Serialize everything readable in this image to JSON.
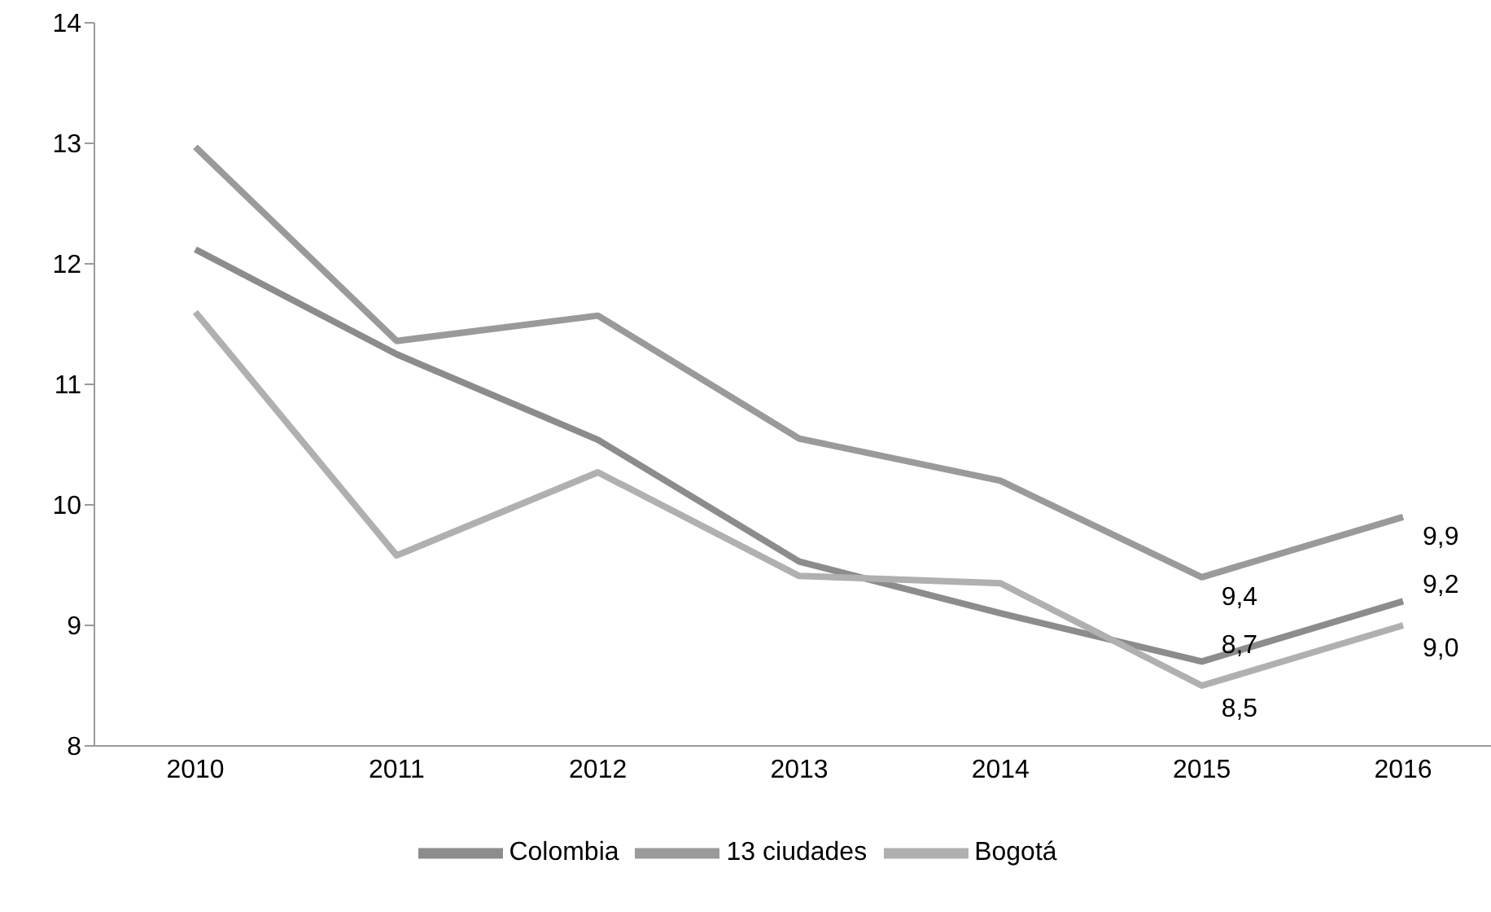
{
  "chart_data": {
    "type": "line",
    "categories": [
      "2010",
      "2011",
      "2012",
      "2013",
      "2014",
      "2015",
      "2016"
    ],
    "series": [
      {
        "name": "Colombia",
        "color": "#8c8c8c",
        "values": [
          12.12,
          11.25,
          10.54,
          9.53,
          9.1,
          8.7,
          9.2
        ],
        "value_labels": [
          null,
          null,
          null,
          null,
          null,
          "8,7",
          "9,2"
        ]
      },
      {
        "name": "13 ciudades",
        "color": "#9a9a9a",
        "values": [
          12.97,
          11.36,
          11.57,
          10.55,
          10.2,
          9.4,
          9.9
        ],
        "value_labels": [
          null,
          null,
          null,
          null,
          null,
          "9,4",
          "9,9"
        ]
      },
      {
        "name": "Bogotá",
        "color": "#b0b0b0",
        "values": [
          11.6,
          9.58,
          10.27,
          9.41,
          9.35,
          8.5,
          9.0
        ],
        "value_labels": [
          null,
          null,
          null,
          null,
          null,
          "8,5",
          "9,0"
        ]
      }
    ],
    "ylim": [
      8,
      14
    ],
    "yticks": [
      8,
      9,
      10,
      11,
      12,
      13,
      14
    ],
    "grid": false,
    "legend": "bottom",
    "marker": "none",
    "line_style": "solid"
  }
}
